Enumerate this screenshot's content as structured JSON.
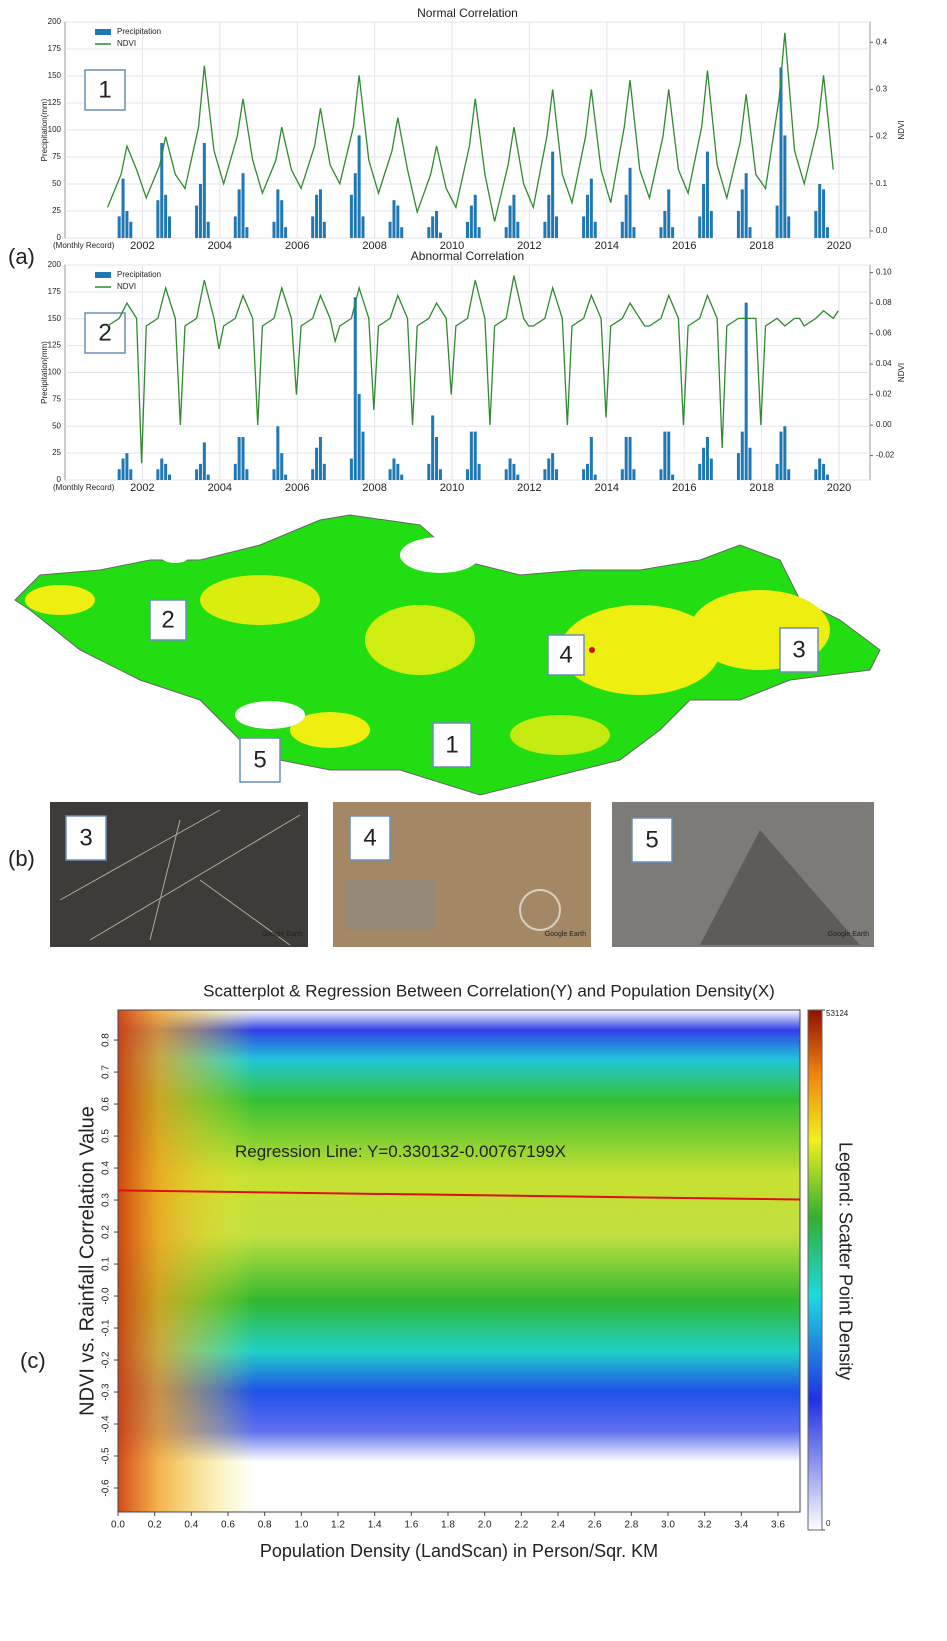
{
  "panel_labels": [
    "(a)",
    "(b)",
    "(c)"
  ],
  "map": {
    "labels": [
      "2",
      "4",
      "3",
      "1",
      "5"
    ]
  },
  "photos": {
    "labels": [
      "3",
      "4",
      "5"
    ],
    "watermark": "Google Earth"
  },
  "chart_data": [
    {
      "type": "combo",
      "title": "Normal Correlation",
      "ylabel": "Precipitation(mm)",
      "y2label": "NDVI",
      "xlabel": "(Monthly Record)",
      "annotation": "1",
      "xlim": [
        2000,
        2020.8
      ],
      "xticks": [
        2002,
        2004,
        2006,
        2008,
        2010,
        2012,
        2014,
        2016,
        2018,
        2020
      ],
      "ylim": [
        0,
        200
      ],
      "yticks": [
        0,
        25,
        50,
        75,
        100,
        125,
        150,
        175,
        200
      ],
      "y2lim": [
        -0.015,
        0.443
      ],
      "y2ticks": [
        {
          "value": 0,
          "label": "0.0"
        },
        0.1,
        0.2,
        0.3,
        0.4
      ],
      "grid": true,
      "legend": "upper left",
      "series": [
        {
          "name": "Precipitation",
          "type": "bar",
          "color": "#1f77b4",
          "x": [
            2001.4,
            2001.5,
            2001.6,
            2001.7,
            2002.4,
            2002.5,
            2002.6,
            2002.7,
            2003.4,
            2003.5,
            2003.6,
            2003.7,
            2004.4,
            2004.5,
            2004.6,
            2004.7,
            2005.4,
            2005.5,
            2005.6,
            2005.7,
            2006.4,
            2006.5,
            2006.6,
            2006.7,
            2007.4,
            2007.5,
            2007.6,
            2007.7,
            2008.4,
            2008.5,
            2008.6,
            2008.7,
            2009.4,
            2009.5,
            2009.6,
            2009.7,
            2010.4,
            2010.5,
            2010.6,
            2010.7,
            2011.4,
            2011.5,
            2011.6,
            2011.7,
            2012.4,
            2012.5,
            2012.6,
            2012.7,
            2013.4,
            2013.5,
            2013.6,
            2013.7,
            2014.4,
            2014.5,
            2014.6,
            2014.7,
            2015.4,
            2015.5,
            2015.6,
            2015.7,
            2016.4,
            2016.5,
            2016.6,
            2016.7,
            2017.4,
            2017.5,
            2017.6,
            2017.7,
            2018.4,
            2018.5,
            2018.6,
            2018.7,
            2019.4,
            2019.5,
            2019.6,
            2019.7
          ],
          "values": [
            20,
            55,
            25,
            15,
            35,
            88,
            40,
            20,
            30,
            50,
            88,
            15,
            20,
            45,
            60,
            10,
            15,
            45,
            35,
            10,
            20,
            40,
            45,
            15,
            40,
            60,
            95,
            20,
            15,
            35,
            30,
            10,
            10,
            20,
            25,
            5,
            15,
            30,
            40,
            10,
            10,
            30,
            40,
            15,
            15,
            40,
            80,
            20,
            20,
            40,
            55,
            15,
            15,
            40,
            65,
            10,
            10,
            25,
            45,
            10,
            20,
            50,
            80,
            25,
            25,
            45,
            60,
            10,
            30,
            158,
            95,
            20,
            25,
            50,
            45,
            10
          ]
        },
        {
          "name": "NDVI",
          "type": "line",
          "axis": "y2",
          "color": "#2e8b2e",
          "x": [
            2001.1,
            2001.45,
            2001.6,
            2001.85,
            2002.1,
            2002.45,
            2002.6,
            2002.85,
            2003.1,
            2003.45,
            2003.6,
            2003.85,
            2004.1,
            2004.45,
            2004.6,
            2004.85,
            2005.1,
            2005.45,
            2005.6,
            2005.85,
            2006.1,
            2006.45,
            2006.6,
            2006.85,
            2007.1,
            2007.45,
            2007.6,
            2007.85,
            2008.1,
            2008.45,
            2008.6,
            2008.85,
            2009.1,
            2009.45,
            2009.6,
            2009.85,
            2010.1,
            2010.45,
            2010.6,
            2010.85,
            2011.1,
            2011.45,
            2011.6,
            2011.85,
            2012.1,
            2012.45,
            2012.6,
            2012.85,
            2013.1,
            2013.45,
            2013.6,
            2013.85,
            2014.1,
            2014.45,
            2014.6,
            2014.85,
            2015.1,
            2015.45,
            2015.6,
            2015.85,
            2016.1,
            2016.45,
            2016.6,
            2016.85,
            2017.1,
            2017.45,
            2017.6,
            2017.85,
            2018.1,
            2018.45,
            2018.6,
            2018.85,
            2019.1,
            2019.45,
            2019.6,
            2019.85
          ],
          "values": [
            0.05,
            0.12,
            0.18,
            0.13,
            0.07,
            0.14,
            0.2,
            0.12,
            0.09,
            0.22,
            0.35,
            0.17,
            0.1,
            0.2,
            0.28,
            0.15,
            0.08,
            0.15,
            0.22,
            0.13,
            0.09,
            0.18,
            0.26,
            0.14,
            0.1,
            0.22,
            0.33,
            0.15,
            0.08,
            0.17,
            0.24,
            0.13,
            0.04,
            0.12,
            0.18,
            0.09,
            0.05,
            0.18,
            0.28,
            0.12,
            0.02,
            0.14,
            0.22,
            0.1,
            0.05,
            0.2,
            0.3,
            0.12,
            0.06,
            0.2,
            0.3,
            0.13,
            0.06,
            0.22,
            0.32,
            0.13,
            0.07,
            0.2,
            0.3,
            0.13,
            0.08,
            0.22,
            0.34,
            0.14,
            0.07,
            0.19,
            0.29,
            0.12,
            0.09,
            0.28,
            0.42,
            0.17,
            0.1,
            0.22,
            0.33,
            0.13
          ]
        }
      ]
    },
    {
      "type": "combo",
      "title": "Abnormal Correlation",
      "ylabel": "Precipitation(mm)",
      "y2label": "NDVI",
      "xlabel": "(Monthly Record)",
      "annotation": "2",
      "xlim": [
        2000,
        2020.8
      ],
      "xticks": [
        2002,
        2004,
        2006,
        2008,
        2010,
        2012,
        2014,
        2016,
        2018,
        2020
      ],
      "ylim": [
        0,
        200
      ],
      "yticks": [
        0,
        25,
        50,
        75,
        100,
        125,
        150,
        175,
        200
      ],
      "y2lim": [
        -0.036,
        0.105
      ],
      "y2ticks": [
        -0.02,
        {
          "value": 0,
          "label": "0.00"
        },
        0.02,
        0.04,
        0.06,
        0.08,
        {
          "value": 0.1,
          "label": "0.10"
        }
      ],
      "grid": true,
      "legend": "upper left",
      "series": [
        {
          "name": "Precipitation",
          "type": "bar",
          "color": "#1f77b4",
          "x": [
            2001.4,
            2001.5,
            2001.6,
            2001.7,
            2002.4,
            2002.5,
            2002.6,
            2002.7,
            2003.4,
            2003.5,
            2003.6,
            2003.7,
            2004.4,
            2004.5,
            2004.6,
            2004.7,
            2005.4,
            2005.5,
            2005.6,
            2005.7,
            2006.4,
            2006.5,
            2006.6,
            2006.7,
            2007.4,
            2007.5,
            2007.6,
            2007.7,
            2008.4,
            2008.5,
            2008.6,
            2008.7,
            2009.4,
            2009.5,
            2009.6,
            2009.7,
            2010.4,
            2010.5,
            2010.6,
            2010.7,
            2011.4,
            2011.5,
            2011.6,
            2011.7,
            2012.4,
            2012.5,
            2012.6,
            2012.7,
            2013.4,
            2013.5,
            2013.6,
            2013.7,
            2014.4,
            2014.5,
            2014.6,
            2014.7,
            2015.4,
            2015.5,
            2015.6,
            2015.7,
            2016.4,
            2016.5,
            2016.6,
            2016.7,
            2017.4,
            2017.5,
            2017.6,
            2017.7,
            2018.4,
            2018.5,
            2018.6,
            2018.7,
            2019.4,
            2019.5,
            2019.6,
            2019.7
          ],
          "values": [
            10,
            20,
            25,
            10,
            10,
            20,
            15,
            5,
            10,
            15,
            35,
            5,
            15,
            40,
            40,
            10,
            10,
            50,
            25,
            5,
            10,
            30,
            40,
            15,
            20,
            170,
            80,
            45,
            10,
            20,
            15,
            5,
            15,
            60,
            40,
            10,
            10,
            45,
            45,
            15,
            10,
            20,
            15,
            5,
            10,
            20,
            25,
            10,
            10,
            15,
            40,
            5,
            10,
            40,
            40,
            10,
            10,
            45,
            45,
            5,
            15,
            30,
            40,
            20,
            25,
            45,
            165,
            30,
            15,
            45,
            50,
            10,
            10,
            20,
            15,
            5
          ]
        },
        {
          "name": "NDVI",
          "type": "line",
          "axis": "y2",
          "color": "#2e8b2e",
          "x": [
            2001.1,
            2001.4,
            2001.6,
            2001.85,
            2001.98,
            2002.1,
            2002.4,
            2002.6,
            2002.85,
            2002.98,
            2003.1,
            2003.4,
            2003.6,
            2003.85,
            2003.98,
            2004.1,
            2004.4,
            2004.6,
            2004.85,
            2004.98,
            2005.1,
            2005.4,
            2005.6,
            2005.85,
            2005.98,
            2006.1,
            2006.4,
            2006.6,
            2006.85,
            2006.98,
            2007.1,
            2007.4,
            2007.6,
            2007.85,
            2007.98,
            2008.1,
            2008.4,
            2008.6,
            2008.85,
            2008.98,
            2009.1,
            2009.4,
            2009.6,
            2009.85,
            2009.98,
            2010.1,
            2010.4,
            2010.6,
            2010.85,
            2010.98,
            2011.1,
            2011.4,
            2011.6,
            2011.85,
            2011.98,
            2012.1,
            2012.4,
            2012.6,
            2012.85,
            2012.98,
            2013.1,
            2013.4,
            2013.6,
            2013.85,
            2013.98,
            2014.1,
            2014.4,
            2014.6,
            2014.85,
            2014.98,
            2015.1,
            2015.4,
            2015.6,
            2015.85,
            2015.98,
            2016.1,
            2016.4,
            2016.6,
            2016.85,
            2016.98,
            2017.1,
            2017.4,
            2017.6,
            2017.85,
            2017.98,
            2018.1,
            2018.4,
            2018.6,
            2018.85,
            2018.98,
            2019.1,
            2019.4,
            2019.6,
            2019.85,
            2019.98
          ],
          "values": [
            0.065,
            0.07,
            0.08,
            0.07,
            -0.025,
            0.065,
            0.07,
            0.09,
            0.07,
            0,
            0.065,
            0.07,
            0.095,
            0.07,
            0.05,
            0.065,
            0.07,
            0.085,
            0.07,
            0,
            0.065,
            0.07,
            0.09,
            0.07,
            0.02,
            0.065,
            0.07,
            0.085,
            0.07,
            0.055,
            0.065,
            0.07,
            0.09,
            0.07,
            0.01,
            0.065,
            0.07,
            0.085,
            0.07,
            0,
            0.065,
            0.07,
            0.08,
            0.07,
            0.02,
            0.065,
            0.07,
            0.095,
            0.07,
            0,
            0.065,
            0.07,
            0.098,
            0.07,
            0.065,
            0.065,
            0.07,
            0.09,
            0.07,
            0,
            0.065,
            0.07,
            0.085,
            0.07,
            0.005,
            0.065,
            0.07,
            0.08,
            0.07,
            0.065,
            0.065,
            0.07,
            0.085,
            0.07,
            0,
            0.065,
            0.07,
            0.085,
            0.07,
            -0.015,
            0.065,
            0.07,
            0.07,
            0.07,
            0,
            0.065,
            0.07,
            0.065,
            0.07,
            0.07,
            0.065,
            0.07,
            0.075,
            0.07,
            0.075
          ]
        }
      ]
    },
    {
      "type": "density",
      "title": "Scatterplot & Regression Between Correlation(Y) and Population Density(X)",
      "xlabel": "Population Density (LandScan) in Person/Sqr. KM",
      "ylabel": "NDVI vs. Rainfall Correlation Value",
      "annotation": "Regression Line: Y=0.330132-0.00767199X",
      "regression": {
        "intercept": 0.330132,
        "slope": -0.00767199,
        "color": "#dd1111"
      },
      "xlim": [
        0,
        3.72
      ],
      "xticks": [
        {
          "value": 0,
          "label": "0.0"
        },
        0.2,
        0.4,
        0.6,
        0.8,
        {
          "value": 1,
          "label": "1.0"
        },
        1.2,
        1.4,
        1.6,
        1.8,
        {
          "value": 2,
          "label": "2.0"
        },
        2.2,
        2.4,
        2.6,
        2.8,
        {
          "value": 3,
          "label": "3.0"
        },
        3.2,
        3.4,
        3.6
      ],
      "ylim": [
        -0.675,
        0.894
      ],
      "yticks": [
        -0.6,
        -0.5,
        -0.4,
        -0.3,
        -0.2,
        -0.1,
        {
          "value": 0,
          "label": "-0.0"
        },
        0.1,
        0.2,
        0.3,
        0.4,
        0.5,
        0.6,
        0.7,
        0.8
      ],
      "colorbar": {
        "label": "Legend: Scatter Point Density",
        "lim": [
          0,
          53124
        ],
        "ticks": [
          0,
          53124
        ]
      }
    }
  ]
}
